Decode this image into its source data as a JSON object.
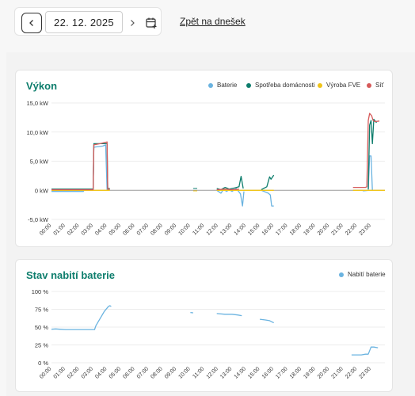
{
  "nav": {
    "date_value": "22. 12. 2025",
    "today_link": "Zpět na dnešek",
    "prev_icon": "chevron-left-icon",
    "next_icon": "chevron-right-icon",
    "calendar_icon": "calendar-plus-icon"
  },
  "power_card": {
    "title": "Výkon",
    "legend": [
      {
        "label": "Baterie",
        "color": "#6ab3e0"
      },
      {
        "label": "Spotřeba domácnosti",
        "color": "#0d7d6c"
      },
      {
        "label": "Výroba FVE",
        "color": "#f0c419"
      },
      {
        "label": "Síť",
        "color": "#d65a5a"
      }
    ]
  },
  "battery_card": {
    "title": "Stav nabití baterie",
    "legend": [
      {
        "label": "Nabití baterie",
        "color": "#6ab3e0"
      }
    ]
  },
  "chart_data": [
    {
      "type": "line",
      "title": "Výkon",
      "y_ticks": [
        "15,0 kW",
        "10,0 kW",
        "5,0 kW",
        "0 kW",
        "-5,0 kW"
      ],
      "x_ticks": [
        "00:00",
        "01:00",
        "02:00",
        "03:00",
        "04:00",
        "05:00",
        "06:00",
        "07:00",
        "08:00",
        "09:00",
        "10:00",
        "11:00",
        "12:00",
        "13:00",
        "14:00",
        "15:00",
        "16:00",
        "17:00",
        "18:00",
        "19:00",
        "20:00",
        "21:00",
        "22:00",
        "23:00"
      ],
      "ylim": [
        -5,
        15
      ],
      "xlim": [
        0,
        24
      ],
      "grid": true,
      "legend_position": "top-right",
      "series": [
        {
          "name": "Baterie",
          "color": "#6ab3e0",
          "segments": [
            [
              [
                0,
                -0.2
              ],
              [
                2.3,
                -0.2
              ],
              [
                2.35,
                0.05
              ],
              [
                3.0,
                0.05
              ],
              [
                3.05,
                7.4
              ],
              [
                3.7,
                7.6
              ],
              [
                3.9,
                7.8
              ],
              [
                4.0,
                0.1
              ],
              [
                4.2,
                0.05
              ]
            ],
            [
              [
                11.9,
                0
              ],
              [
                12.2,
                -0.5
              ],
              [
                12.4,
                0.2
              ],
              [
                12.6,
                -0.2
              ],
              [
                12.8,
                0.1
              ],
              [
                13.0,
                -0.2
              ],
              [
                13.3,
                0.3
              ],
              [
                13.6,
                -0.6
              ],
              [
                13.75,
                -2.7
              ],
              [
                13.85,
                -0.2
              ]
            ],
            [
              [
                15.1,
                0
              ],
              [
                15.6,
                -0.5
              ],
              [
                15.75,
                -0.8
              ],
              [
                15.85,
                -2.7
              ],
              [
                16.0,
                -2.7
              ]
            ],
            [
              [
                21.7,
                0
              ],
              [
                22.4,
                0
              ],
              [
                22.45,
                -0.1
              ],
              [
                22.8,
                0
              ],
              [
                22.9,
                5.9
              ],
              [
                23.0,
                5.9
              ],
              [
                23.1,
                0
              ]
            ]
          ]
        },
        {
          "name": "Spotřeba domácnosti",
          "color": "#0d7d6c",
          "segments": [
            [
              [
                0,
                0.2
              ],
              [
                3.0,
                0.2
              ],
              [
                3.05,
                8.0
              ],
              [
                4.0,
                8.0
              ],
              [
                4.05,
                0.3
              ],
              [
                4.2,
                0.3
              ]
            ],
            [
              [
                11.9,
                0.3
              ],
              [
                12.2,
                0.1
              ],
              [
                12.5,
                0.5
              ],
              [
                12.8,
                0.2
              ],
              [
                13.2,
                0.4
              ],
              [
                13.5,
                0.6
              ],
              [
                13.65,
                2.4
              ],
              [
                13.8,
                0.3
              ]
            ],
            [
              [
                15.1,
                0.1
              ],
              [
                15.5,
                0.6
              ],
              [
                15.7,
                2.3
              ],
              [
                15.8,
                1.9
              ],
              [
                16.0,
                2.6
              ]
            ],
            [
              [
                22.8,
                0.2
              ],
              [
                22.9,
                11.2
              ],
              [
                23.0,
                12.0
              ],
              [
                23.1,
                8.0
              ],
              [
                23.2,
                12.2
              ],
              [
                23.4,
                11.6
              ]
            ]
          ]
        },
        {
          "name": "Výroba FVE",
          "color": "#f0c419",
          "segments": [
            [
              [
                0,
                0
              ],
              [
                4.2,
                0
              ]
            ],
            [
              [
                11.9,
                0
              ],
              [
                16.0,
                0
              ]
            ],
            [
              [
                21.7,
                0
              ],
              [
                24.0,
                0
              ]
            ]
          ]
        },
        {
          "name": "Síť",
          "color": "#d65a5a",
          "segments": [
            [
              [
                0,
                0.1
              ],
              [
                3.0,
                0.1
              ],
              [
                3.05,
                7.8
              ],
              [
                3.5,
                8.0
              ],
              [
                3.8,
                8.2
              ],
              [
                4.0,
                8.3
              ],
              [
                4.05,
                0.2
              ],
              [
                4.2,
                0.2
              ]
            ],
            [
              [
                11.9,
                0.1
              ],
              [
                12.5,
                0.2
              ],
              [
                13.0,
                0.1
              ],
              [
                13.5,
                0.2
              ]
            ],
            [
              [
                21.7,
                0.5
              ],
              [
                22.6,
                0.5
              ],
              [
                22.7,
                0.6
              ],
              [
                22.8,
                12.0
              ],
              [
                22.9,
                13.2
              ],
              [
                23.05,
                12.8
              ],
              [
                23.15,
                12.0
              ],
              [
                23.3,
                11.8
              ],
              [
                23.6,
                11.9
              ]
            ]
          ]
        }
      ]
    },
    {
      "type": "line",
      "title": "Stav nabití baterie",
      "y_ticks": [
        "100 %",
        "75 %",
        "50 %",
        "25 %",
        "0 %"
      ],
      "x_ticks": [
        "00:00",
        "01:00",
        "02:00",
        "03:00",
        "04:00",
        "05:00",
        "06:00",
        "07:00",
        "08:00",
        "09:00",
        "10:00",
        "11:00",
        "12:00",
        "13:00",
        "14:00",
        "15:00",
        "16:00",
        "17:00",
        "18:00",
        "19:00",
        "20:00",
        "21:00",
        "22:00",
        "23:00"
      ],
      "ylim": [
        0,
        100
      ],
      "xlim": [
        0,
        24
      ],
      "grid": true,
      "legend_position": "top-right",
      "series": [
        {
          "name": "Nabití baterie",
          "color": "#6ab3e0",
          "segments": [
            [
              [
                0,
                47
              ],
              [
                0.3,
                47.5
              ],
              [
                0.6,
                47
              ],
              [
                1.0,
                46.5
              ],
              [
                2.5,
                46.5
              ],
              [
                3.1,
                46.5
              ],
              [
                3.2,
                52
              ],
              [
                3.5,
                62
              ],
              [
                3.8,
                72
              ],
              [
                4.1,
                79
              ],
              [
                4.2,
                80
              ],
              [
                4.3,
                79
              ]
            ],
            [
              [
                10.0,
                70.5
              ],
              [
                10.2,
                70
              ]
            ],
            [
              [
                11.9,
                69
              ],
              [
                12.5,
                68
              ],
              [
                13.0,
                68
              ],
              [
                13.4,
                67
              ],
              [
                13.7,
                66
              ]
            ],
            [
              [
                15.0,
                61
              ],
              [
                15.4,
                60
              ],
              [
                15.7,
                59
              ],
              [
                15.9,
                57
              ],
              [
                16.0,
                56
              ]
            ],
            [
              [
                21.6,
                11
              ],
              [
                22.3,
                11
              ],
              [
                22.6,
                12
              ],
              [
                22.8,
                12
              ],
              [
                23.0,
                22
              ],
              [
                23.2,
                22
              ],
              [
                23.5,
                21
              ]
            ]
          ]
        }
      ]
    }
  ]
}
